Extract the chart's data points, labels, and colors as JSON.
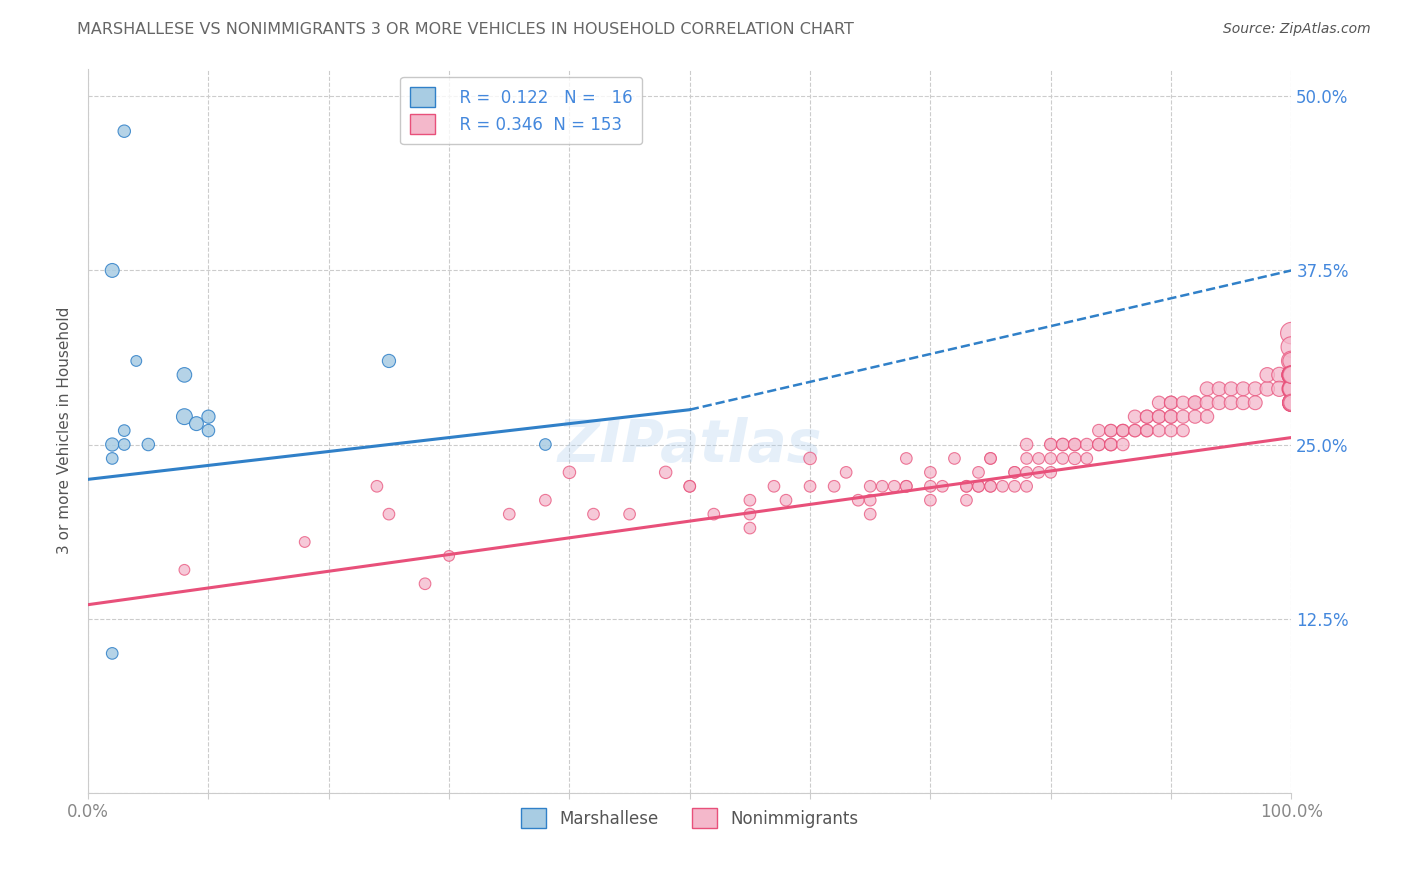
{
  "title": "MARSHALLESE VS NONIMMIGRANTS 3 OR MORE VEHICLES IN HOUSEHOLD CORRELATION CHART",
  "source": "Source: ZipAtlas.com",
  "ylabel": "3 or more Vehicles in Household",
  "xlim": [
    0,
    100
  ],
  "ylim": [
    0,
    52
  ],
  "yticks": [
    0,
    12.5,
    25.0,
    37.5,
    50.0
  ],
  "xticks": [
    0,
    10,
    20,
    30,
    40,
    50,
    60,
    70,
    80,
    90,
    100
  ],
  "right_ytick_labels": [
    "",
    "12.5%",
    "25.0%",
    "37.5%",
    "50.0%"
  ],
  "legend_r1": "R =  0.122",
  "legend_n1": "N =   16",
  "legend_r2": "R = 0.346",
  "legend_n2": "N = 153",
  "blue_color": "#a8cce3",
  "pink_color": "#f4b8cb",
  "blue_line_color": "#3080c8",
  "pink_line_color": "#e8507a",
  "title_color": "#666666",
  "axis_label_color": "#555555",
  "tick_color": "#888888",
  "right_tick_color": "#4488dd",
  "grid_color": "#cccccc",
  "watermark": "ZIPatlas",
  "background_color": "#ffffff",
  "blue_scatter_x": [
    3,
    2,
    4,
    5,
    8,
    8,
    9,
    10,
    10,
    3,
    25,
    2,
    3,
    38,
    2,
    2
  ],
  "blue_scatter_y": [
    47.5,
    37.5,
    31,
    25,
    30,
    27,
    26.5,
    27,
    26,
    26,
    31,
    25,
    25,
    25,
    24,
    10
  ],
  "blue_scatter_size": [
    80,
    100,
    60,
    80,
    110,
    130,
    100,
    90,
    80,
    70,
    90,
    90,
    70,
    70,
    70,
    70
  ],
  "pink_scatter_x": [
    8,
    18,
    24,
    25,
    28,
    30,
    35,
    38,
    40,
    42,
    45,
    48,
    50,
    50,
    52,
    55,
    55,
    55,
    57,
    58,
    60,
    60,
    62,
    63,
    64,
    65,
    65,
    65,
    66,
    67,
    68,
    68,
    68,
    70,
    70,
    70,
    71,
    72,
    73,
    73,
    73,
    74,
    74,
    74,
    75,
    75,
    75,
    75,
    76,
    77,
    77,
    77,
    78,
    78,
    78,
    78,
    79,
    79,
    80,
    80,
    80,
    80,
    81,
    81,
    81,
    82,
    82,
    82,
    83,
    83,
    84,
    84,
    84,
    85,
    85,
    85,
    85,
    85,
    86,
    86,
    86,
    86,
    87,
    87,
    87,
    88,
    88,
    88,
    88,
    89,
    89,
    89,
    89,
    90,
    90,
    90,
    90,
    90,
    91,
    91,
    91,
    92,
    92,
    92,
    93,
    93,
    93,
    94,
    94,
    95,
    95,
    96,
    96,
    97,
    97,
    98,
    98,
    99,
    99,
    100,
    100,
    100,
    100,
    100,
    100,
    100,
    100,
    100,
    100,
    100,
    100,
    100,
    100,
    100,
    100,
    100,
    100,
    100,
    100,
    100,
    100,
    100,
    100,
    100,
    100,
    100,
    100,
    100,
    100,
    100,
    100,
    100,
    100
  ],
  "pink_scatter_y": [
    16,
    18,
    22,
    20,
    15,
    17,
    20,
    21,
    23,
    20,
    20,
    23,
    22,
    22,
    20,
    21,
    20,
    19,
    22,
    21,
    22,
    24,
    22,
    23,
    21,
    20,
    22,
    21,
    22,
    22,
    22,
    22,
    24,
    22,
    23,
    21,
    22,
    24,
    22,
    21,
    22,
    22,
    22,
    23,
    22,
    24,
    22,
    24,
    22,
    23,
    23,
    22,
    23,
    24,
    22,
    25,
    24,
    23,
    25,
    25,
    24,
    23,
    25,
    25,
    24,
    25,
    24,
    25,
    24,
    25,
    25,
    25,
    26,
    26,
    25,
    25,
    26,
    25,
    26,
    26,
    25,
    26,
    26,
    27,
    26,
    27,
    26,
    27,
    26,
    27,
    27,
    28,
    26,
    27,
    27,
    28,
    26,
    28,
    27,
    28,
    26,
    28,
    27,
    28,
    28,
    29,
    27,
    29,
    28,
    28,
    29,
    28,
    29,
    29,
    28,
    29,
    30,
    30,
    29,
    33,
    32,
    31,
    30,
    30,
    29,
    30,
    30,
    29,
    30,
    30,
    31,
    29,
    30,
    30,
    28,
    30,
    30,
    28,
    30,
    30,
    29,
    29,
    28,
    30,
    30,
    30,
    29,
    29,
    30,
    30,
    28,
    30,
    28
  ],
  "pink_scatter_size": [
    60,
    60,
    70,
    70,
    70,
    60,
    70,
    70,
    80,
    70,
    70,
    80,
    70,
    70,
    70,
    70,
    70,
    70,
    70,
    70,
    70,
    80,
    70,
    70,
    70,
    70,
    70,
    70,
    70,
    70,
    70,
    70,
    70,
    70,
    70,
    70,
    70,
    70,
    70,
    70,
    70,
    70,
    70,
    70,
    70,
    70,
    70,
    70,
    70,
    70,
    70,
    70,
    70,
    70,
    70,
    80,
    70,
    70,
    70,
    80,
    70,
    70,
    80,
    80,
    70,
    80,
    80,
    80,
    70,
    80,
    80,
    80,
    80,
    80,
    80,
    80,
    80,
    80,
    80,
    80,
    80,
    80,
    80,
    90,
    80,
    90,
    80,
    90,
    80,
    90,
    90,
    90,
    80,
    90,
    90,
    90,
    80,
    90,
    90,
    90,
    80,
    90,
    90,
    100,
    100,
    100,
    90,
    100,
    100,
    100,
    100,
    100,
    100,
    100,
    100,
    110,
    110,
    120,
    120,
    240,
    220,
    200,
    180,
    170,
    180,
    180,
    160,
    170,
    180,
    180,
    150,
    160,
    170,
    150,
    160,
    150,
    140,
    160,
    160,
    150,
    150,
    140,
    160,
    150,
    150,
    140,
    140,
    150,
    150,
    130,
    150,
    150,
    120
  ],
  "blue_line_x0": 0,
  "blue_line_y0": 22.5,
  "blue_line_x_solid_end": 50,
  "blue_line_y_solid_end": 27.5,
  "blue_line_x1": 100,
  "blue_line_y1": 37.5,
  "pink_line_x0": 0,
  "pink_line_y0": 13.5,
  "pink_line_x1": 100,
  "pink_line_y1": 25.5
}
